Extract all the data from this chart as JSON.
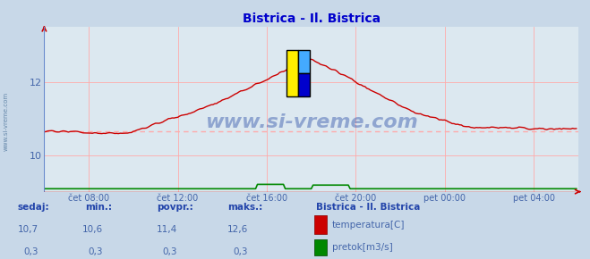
{
  "title": "Bistrica - Il. Bistrica",
  "title_color": "#0000cc",
  "bg_color": "#c8d8e8",
  "plot_bg_color": "#dce8f0",
  "grid_color": "#ffaaaa",
  "axis_color": "#cc0000",
  "blue_axis_color": "#6688cc",
  "tick_label_color": "#4466aa",
  "watermark_text": "www.si-vreme.com",
  "watermark_color": "#3355aa",
  "xtick_labels": [
    "čet 08:00",
    "čet 12:00",
    "čet 16:00",
    "čet 20:00",
    "pet 00:00",
    "pet 04:00"
  ],
  "xtick_positions": [
    0.083,
    0.25,
    0.417,
    0.583,
    0.75,
    0.917
  ],
  "ylim_min": 9.0,
  "ylim_max": 13.5,
  "xlim": 288,
  "avg_temp": 10.65,
  "temp_color": "#cc0000",
  "flow_color": "#008800",
  "dashed_color": "#ffaaaa",
  "footer_label_color": "#4466aa",
  "footer_bold_color": "#2244aa",
  "legend_title": "Bistrica - Il. Bistrica",
  "legend_title_color": "#2244aa",
  "legend_temp_color": "#cc0000",
  "legend_flow_color": "#008800",
  "stats_sedaj": [
    "10,7",
    "0,3"
  ],
  "stats_min": [
    "10,6",
    "0,3"
  ],
  "stats_povpr": [
    "11,4",
    "0,3"
  ],
  "stats_maks": [
    "12,6",
    "0,3"
  ],
  "footer_bg": "#c8d8e8",
  "ylabel_color": "#6688aa",
  "logo_yellow": "#ffee00",
  "logo_cyan": "#44aaff",
  "logo_blue": "#0000cc"
}
